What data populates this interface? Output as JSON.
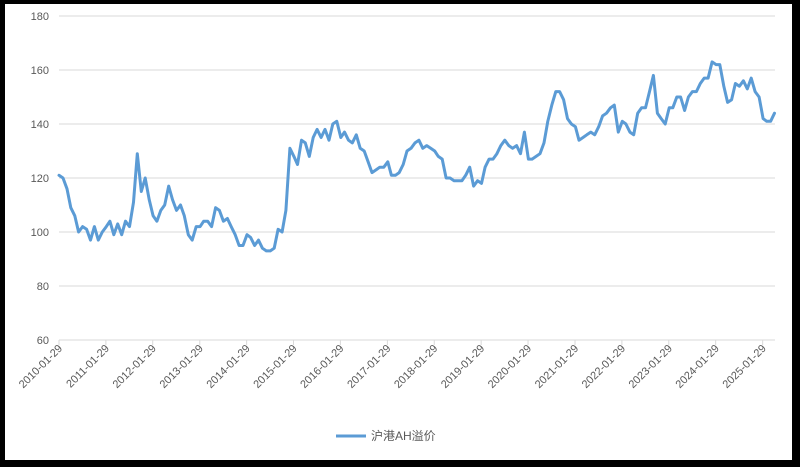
{
  "chart_data": {
    "type": "line",
    "title": "",
    "xlabel": "",
    "ylabel": "",
    "ylim": [
      60,
      180
    ],
    "yticks": [
      60,
      80,
      100,
      120,
      140,
      160,
      180
    ],
    "xticks": [
      "2010-01-29",
      "2011-01-29",
      "2012-01-29",
      "2013-01-29",
      "2014-01-29",
      "2015-01-29",
      "2016-01-29",
      "2017-01-29",
      "2018-01-29",
      "2019-01-29",
      "2020-01-29",
      "2021-01-29",
      "2022-01-29",
      "2023-01-29",
      "2024-01-29",
      "2025-01-29"
    ],
    "xstart": "2010-01-29",
    "grid": "horizontal",
    "legend_position": "bottom",
    "colors": {
      "series": "#5B9BD5",
      "grid": "#D9D9D9",
      "text": "#595959"
    },
    "series": [
      {
        "name": "沪港AH溢价",
        "x": [
          "2010-01-29",
          "2010-03-01",
          "2010-04-01",
          "2010-05-01",
          "2010-06-01",
          "2010-07-01",
          "2010-08-01",
          "2010-09-01",
          "2010-10-01",
          "2010-11-01",
          "2010-12-01",
          "2011-01-01",
          "2011-02-01",
          "2011-03-01",
          "2011-04-01",
          "2011-05-01",
          "2011-06-01",
          "2011-07-01",
          "2011-08-01",
          "2011-09-01",
          "2011-10-01",
          "2011-11-01",
          "2011-12-01",
          "2012-01-01",
          "2012-02-01",
          "2012-03-01",
          "2012-04-01",
          "2012-05-01",
          "2012-06-01",
          "2012-07-01",
          "2012-08-01",
          "2012-09-01",
          "2012-10-01",
          "2012-11-01",
          "2012-12-01",
          "2013-01-01",
          "2013-02-01",
          "2013-03-01",
          "2013-04-01",
          "2013-05-01",
          "2013-06-01",
          "2013-07-01",
          "2013-08-01",
          "2013-09-01",
          "2013-10-01",
          "2013-11-01",
          "2013-12-01",
          "2014-01-01",
          "2014-02-01",
          "2014-03-01",
          "2014-04-01",
          "2014-05-01",
          "2014-06-01",
          "2014-07-01",
          "2014-08-01",
          "2014-09-01",
          "2014-10-01",
          "2014-11-01",
          "2014-12-01",
          "2015-01-01",
          "2015-02-01",
          "2015-03-01",
          "2015-04-01",
          "2015-05-01",
          "2015-06-01",
          "2015-07-01",
          "2015-08-01",
          "2015-09-01",
          "2015-10-01",
          "2015-11-01",
          "2015-12-01",
          "2016-01-01",
          "2016-02-01",
          "2016-03-01",
          "2016-04-01",
          "2016-05-01",
          "2016-06-01",
          "2016-07-01",
          "2016-08-01",
          "2016-09-01",
          "2016-10-01",
          "2016-11-01",
          "2016-12-01",
          "2017-01-01",
          "2017-02-01",
          "2017-03-01",
          "2017-04-01",
          "2017-05-01",
          "2017-06-01",
          "2017-07-01",
          "2017-08-01",
          "2017-09-01",
          "2017-10-01",
          "2017-11-01",
          "2017-12-01",
          "2018-01-01",
          "2018-02-01",
          "2018-03-01",
          "2018-04-01",
          "2018-05-01",
          "2018-06-01",
          "2018-07-01",
          "2018-08-01",
          "2018-09-01",
          "2018-10-01",
          "2018-11-01",
          "2018-12-01",
          "2019-01-01",
          "2019-02-01",
          "2019-03-01",
          "2019-04-01",
          "2019-05-01",
          "2019-06-01",
          "2019-07-01",
          "2019-08-01",
          "2019-09-01",
          "2019-10-01",
          "2019-11-01",
          "2019-12-01",
          "2020-01-01",
          "2020-02-01",
          "2020-03-01",
          "2020-04-01",
          "2020-05-01",
          "2020-06-01",
          "2020-07-01",
          "2020-08-01",
          "2020-09-01",
          "2020-10-01",
          "2020-11-01",
          "2020-12-01",
          "2021-01-01",
          "2021-02-01",
          "2021-03-01",
          "2021-04-01",
          "2021-05-01",
          "2021-06-01",
          "2021-07-01",
          "2021-08-01",
          "2021-09-01",
          "2021-10-01",
          "2021-11-01",
          "2021-12-01",
          "2022-01-01",
          "2022-02-01",
          "2022-03-01",
          "2022-04-01",
          "2022-05-01",
          "2022-06-01",
          "2022-07-01",
          "2022-08-01",
          "2022-09-01",
          "2022-10-01",
          "2022-11-01",
          "2022-12-01",
          "2023-01-01",
          "2023-02-01",
          "2023-03-01",
          "2023-04-01",
          "2023-05-01",
          "2023-06-01",
          "2023-07-01",
          "2023-08-01",
          "2023-09-01",
          "2023-10-01",
          "2023-11-01",
          "2023-12-01",
          "2024-01-01",
          "2024-02-01",
          "2024-03-01",
          "2024-04-01",
          "2024-05-01",
          "2024-06-01",
          "2024-07-01",
          "2024-08-01",
          "2024-09-01",
          "2024-10-01",
          "2024-11-01",
          "2024-12-01",
          "2025-01-01",
          "2025-02-01",
          "2025-03-01",
          "2025-04-01",
          "2025-05-01"
        ],
        "values": [
          121,
          120,
          116,
          109,
          106,
          100,
          102,
          101,
          97,
          102,
          97,
          100,
          102,
          104,
          99,
          103,
          99,
          104,
          102,
          111,
          129,
          115,
          120,
          112,
          106,
          104,
          108,
          110,
          117,
          112,
          108,
          110,
          106,
          99,
          97,
          102,
          102,
          104,
          104,
          102,
          109,
          108,
          104,
          105,
          102,
          99,
          95,
          95,
          99,
          98,
          95,
          97,
          94,
          93,
          93,
          94,
          101,
          100,
          108,
          131,
          128,
          125,
          134,
          133,
          128,
          135,
          138,
          135,
          138,
          134,
          140,
          141,
          135,
          137,
          134,
          133,
          136,
          131,
          130,
          126,
          122,
          123,
          124,
          124,
          126,
          121,
          121,
          122,
          125,
          130,
          131,
          133,
          134,
          131,
          132,
          131,
          130,
          128,
          127,
          120,
          120,
          119,
          119,
          119,
          121,
          124,
          117,
          119,
          118,
          124,
          127,
          127,
          129,
          132,
          134,
          132,
          131,
          132,
          129,
          137,
          127,
          127,
          128,
          129,
          133,
          141,
          147,
          152,
          152,
          149,
          142,
          140,
          139,
          134,
          135,
          136,
          137,
          136,
          139,
          143,
          144,
          146,
          147,
          137,
          141,
          140,
          137,
          136,
          144,
          146,
          146,
          152,
          158,
          144,
          142,
          140,
          146,
          146,
          150,
          150,
          145,
          150,
          152,
          152,
          155,
          157,
          157,
          163,
          162,
          162,
          154,
          148,
          149,
          155,
          154,
          156,
          153,
          157,
          152,
          150,
          142,
          141,
          141,
          144
        ]
      }
    ]
  }
}
